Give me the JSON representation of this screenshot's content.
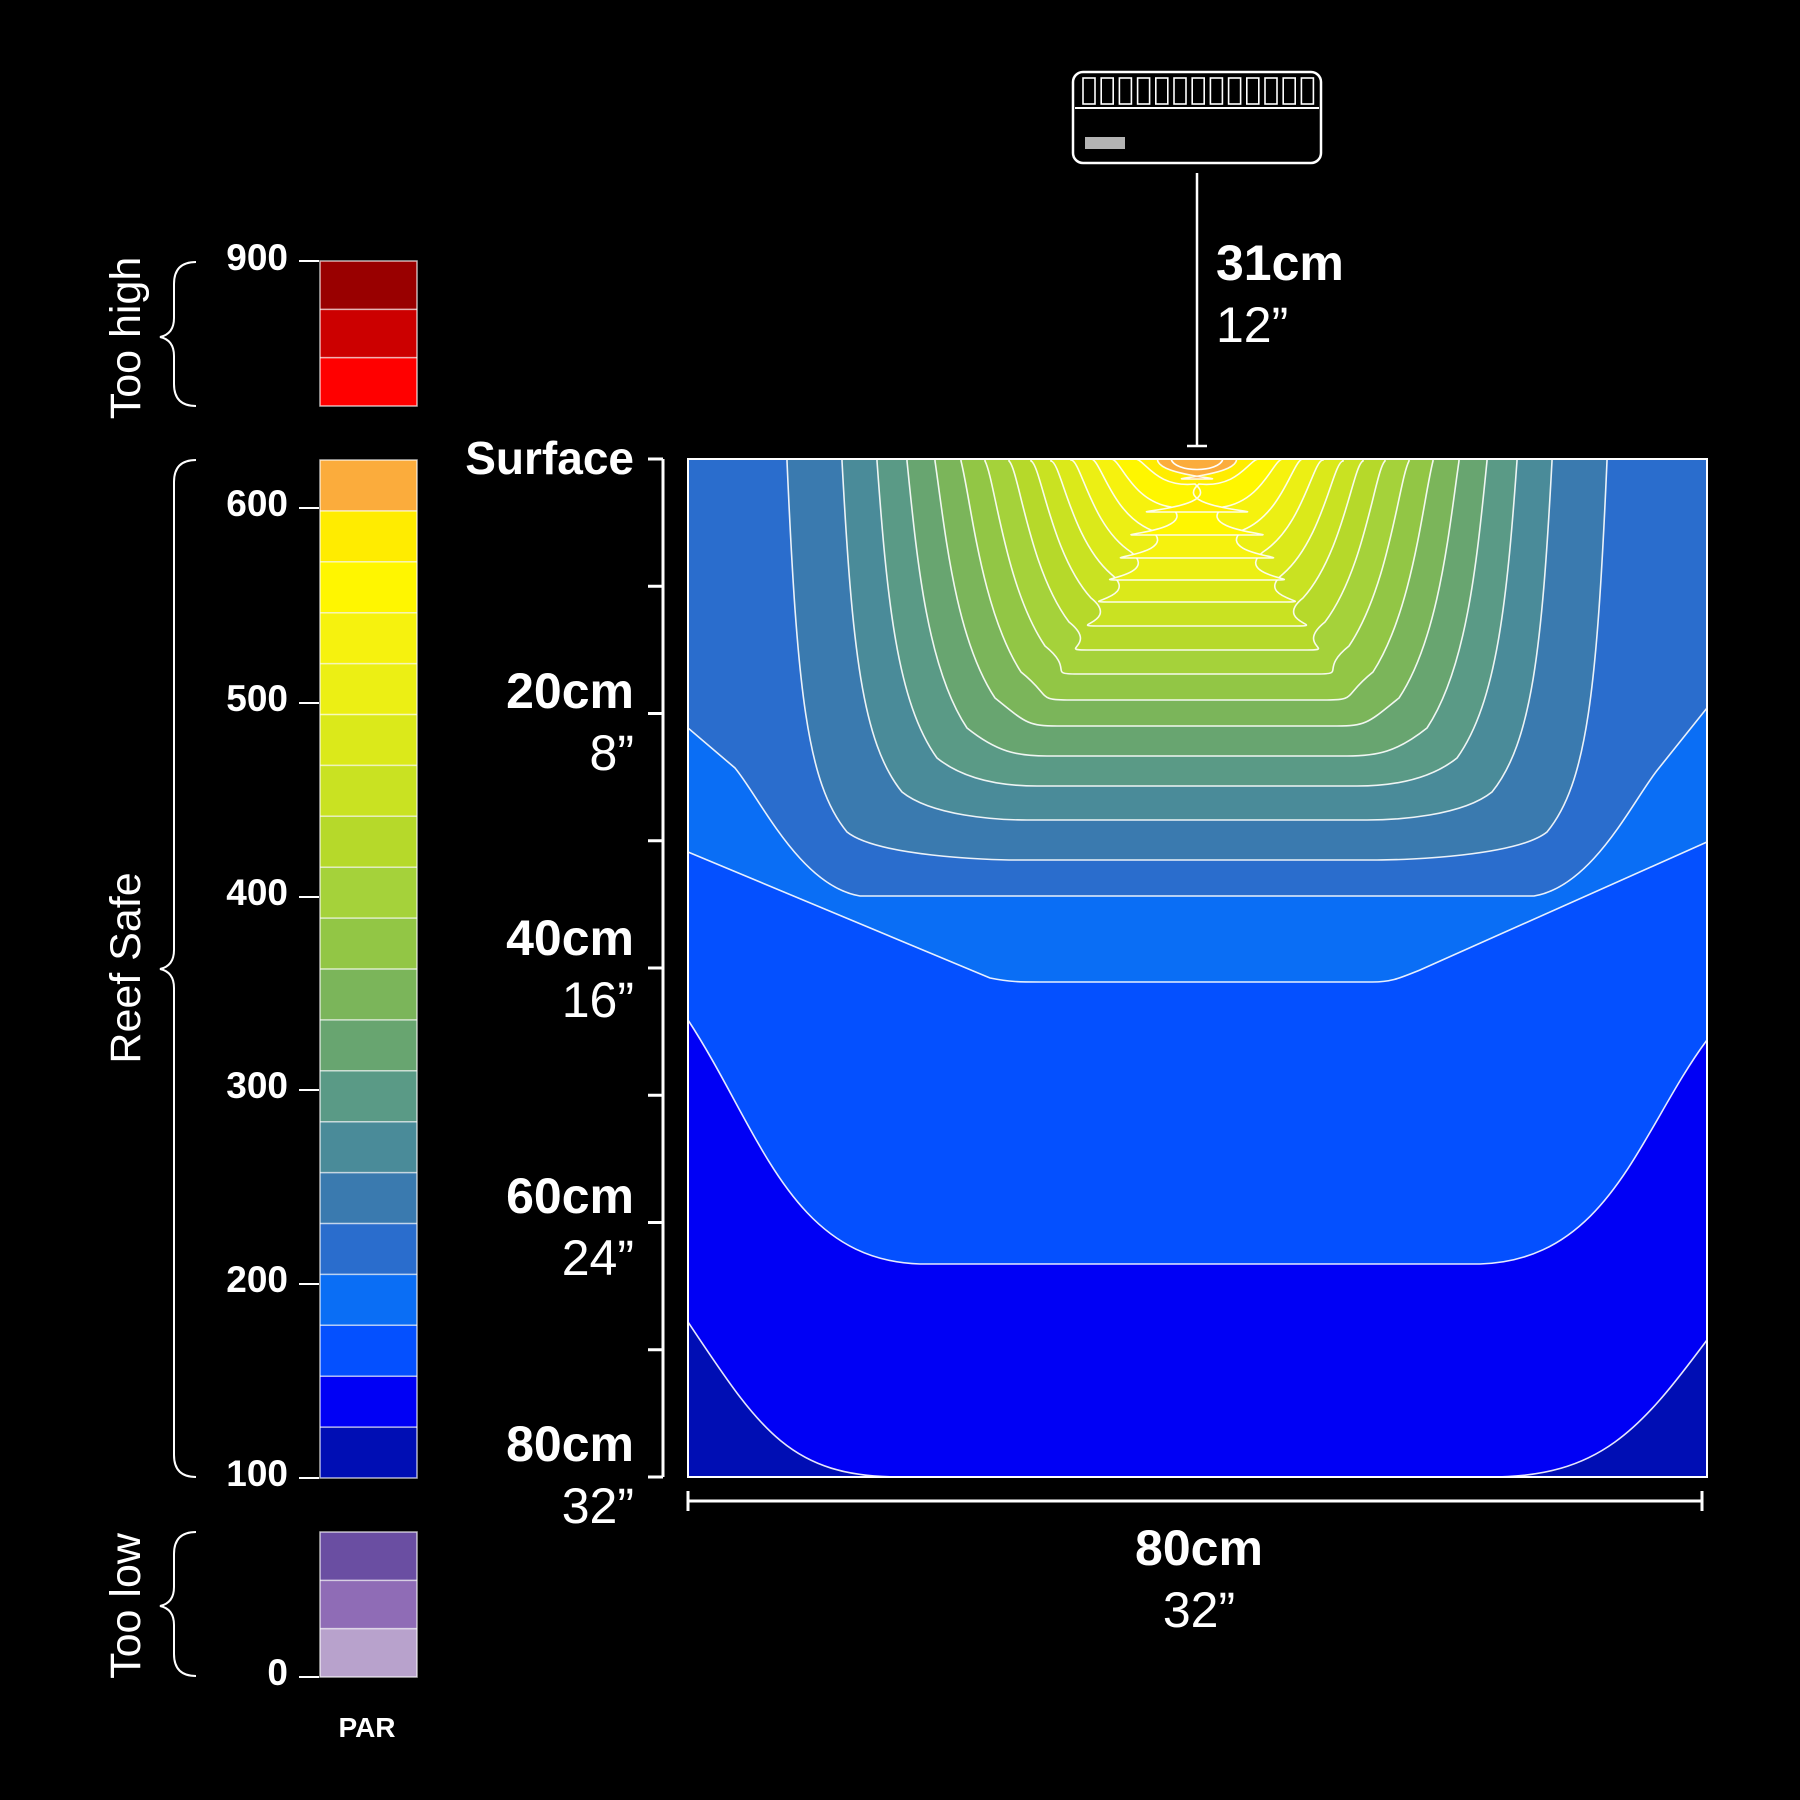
{
  "chart_data": {
    "type": "heatmap",
    "title": "",
    "legend": {
      "label": "PAR",
      "tick_labels": [
        "900",
        "600",
        "500",
        "400",
        "300",
        "200",
        "100",
        "0"
      ],
      "groups": [
        {
          "label": "Too high",
          "min": 750,
          "max": 900,
          "colors": [
            "#990000",
            "#cc0000",
            "#ff0000"
          ]
        },
        {
          "label": "Reef Safe",
          "min": 100,
          "max": 625,
          "colors": [
            "#fbac3c",
            "#ffec00",
            "#fff600",
            "#f6f20e",
            "#ecef14",
            "#dbe91a",
            "#c9e222",
            "#b6d92a",
            "#a5d23a",
            "#92c645",
            "#7bb55a",
            "#68a570",
            "#5a9a86",
            "#4a8b99",
            "#3a7aaf",
            "#2a6dcd",
            "#0a6ef5",
            "#0450ff",
            "#0000f5",
            "#000eb4"
          ]
        },
        {
          "label": "Too low",
          "min": 0,
          "max": 75,
          "colors": [
            "#6a4ea2",
            "#8f6cb6",
            "#b8a2cc"
          ]
        }
      ]
    },
    "fixture": {
      "height_label_cm": "31cm",
      "height_label_in": "12”",
      "height_cm": 31
    },
    "depth_axis": {
      "ticks": [
        {
          "depth_cm": 0,
          "label_cm": "Surface",
          "label_in": ""
        },
        {
          "depth_cm": 20,
          "label_cm": "20cm",
          "label_in": "8”"
        },
        {
          "depth_cm": 40,
          "label_cm": "40cm",
          "label_in": "16”"
        },
        {
          "depth_cm": 60,
          "label_cm": "60cm",
          "label_in": "24”"
        },
        {
          "depth_cm": 80,
          "label_cm": "80cm",
          "label_in": "32”"
        }
      ],
      "range_cm": [
        0,
        80
      ]
    },
    "width_axis": {
      "label_cm": "80cm",
      "label_in": "32”",
      "range_cm": [
        0,
        80
      ]
    },
    "contours": {
      "bands_center_to_edge": [
        "#fbac3c",
        "#ffec00",
        "#fff600",
        "#f6f20e",
        "#ecef14",
        "#dbe91a",
        "#c9e222",
        "#b6d92a",
        "#a5d23a",
        "#92c645",
        "#7bb55a",
        "#68a570",
        "#5a9a86",
        "#4a8b99",
        "#3a7aaf",
        "#2a6dcd",
        "#0a6ef5",
        "#0450ff",
        "#0000f5",
        "#000eb4"
      ],
      "max_par_at_surface_center": 625
    }
  }
}
